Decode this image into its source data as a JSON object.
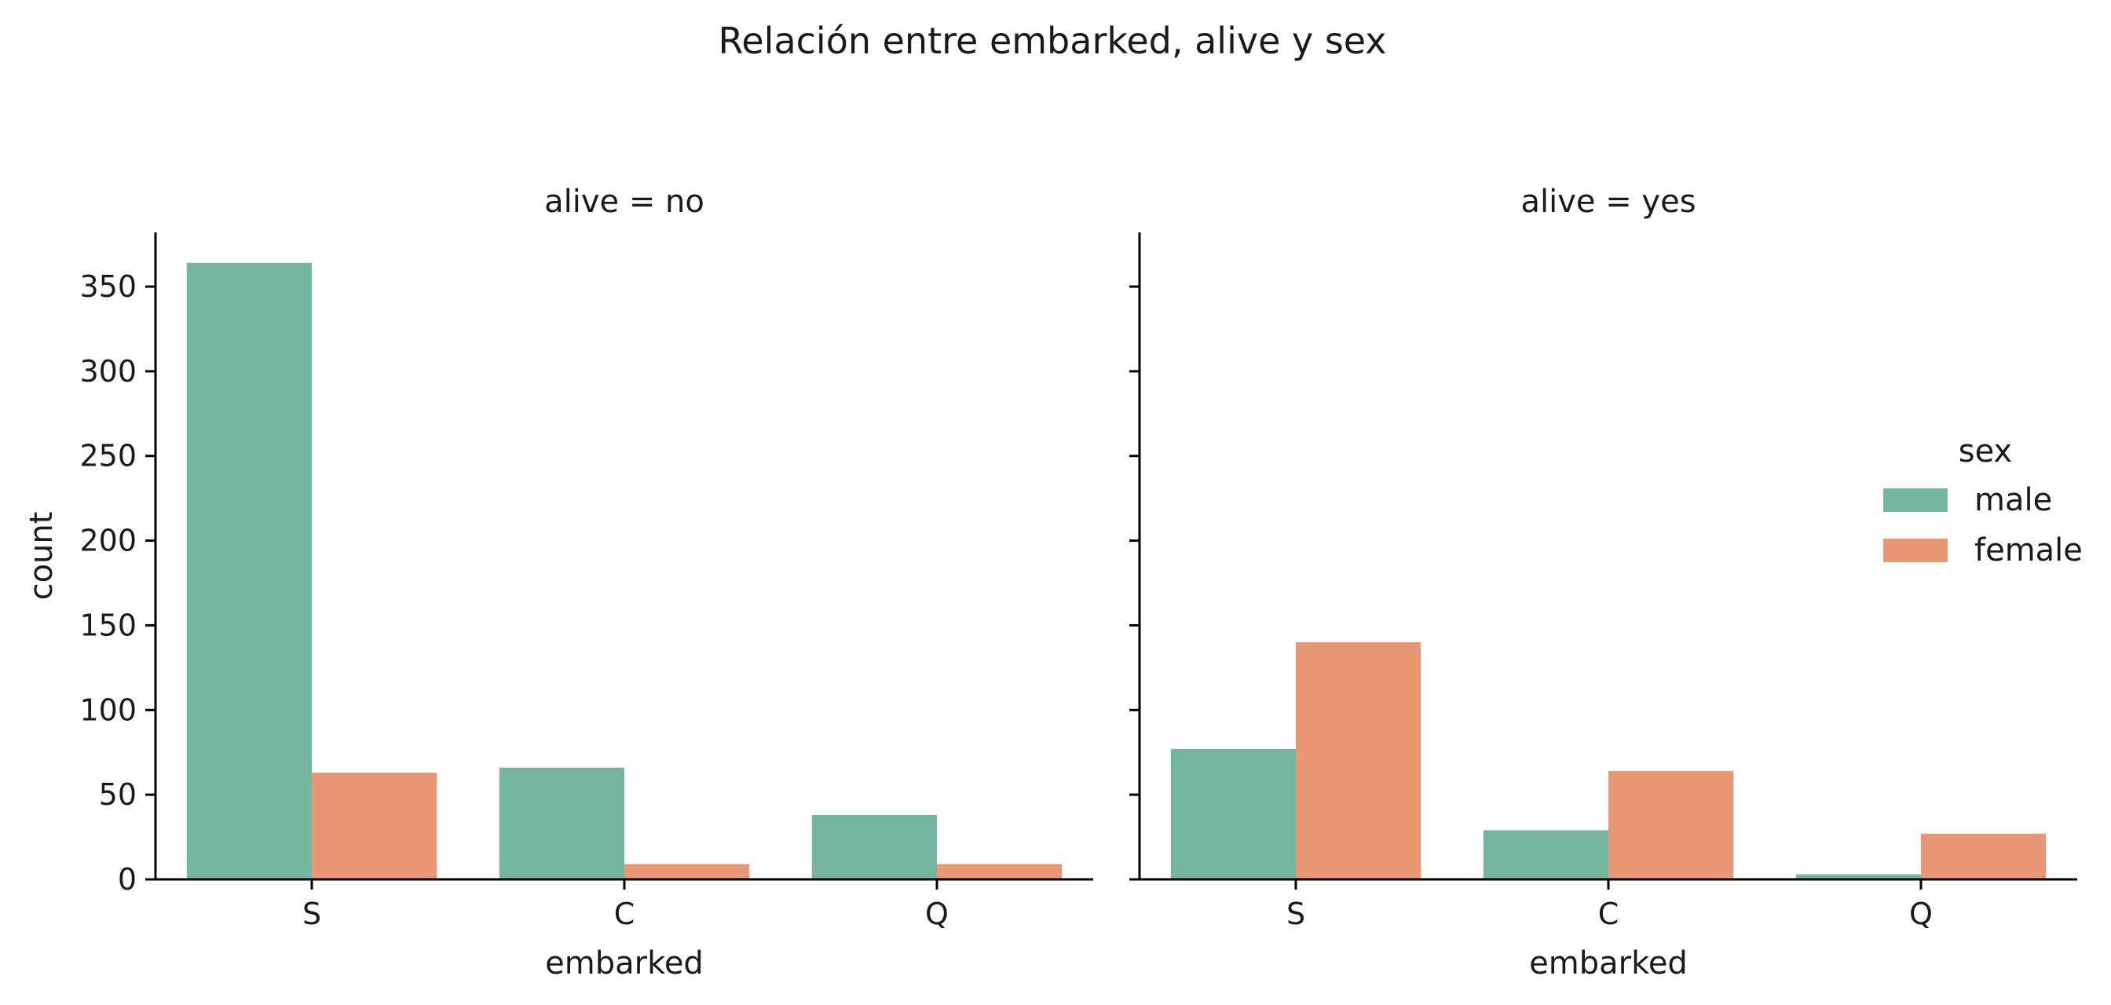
{
  "chart_data": {
    "type": "bar",
    "title": "Relación entre embarked, alive y sex",
    "xlabel": "embarked",
    "ylabel": "count",
    "categories": [
      "S",
      "C",
      "Q"
    ],
    "y_ticks": [
      0,
      50,
      100,
      150,
      200,
      250,
      300,
      350
    ],
    "ylim": [
      0,
      382
    ],
    "grid": false,
    "legend": {
      "title": "sex",
      "placement": "right",
      "entries": [
        {
          "name": "male",
          "color": "#74b6a0"
        },
        {
          "name": "female",
          "color": "#e99774"
        }
      ]
    },
    "facets": [
      {
        "title": "alive = no",
        "series": [
          {
            "name": "male",
            "values": [
              364,
              66,
              38
            ]
          },
          {
            "name": "female",
            "values": [
              63,
              9,
              9
            ]
          }
        ]
      },
      {
        "title": "alive = yes",
        "series": [
          {
            "name": "male",
            "values": [
              77,
              29,
              3
            ]
          },
          {
            "name": "female",
            "values": [
              140,
              64,
              27
            ]
          }
        ]
      }
    ]
  }
}
